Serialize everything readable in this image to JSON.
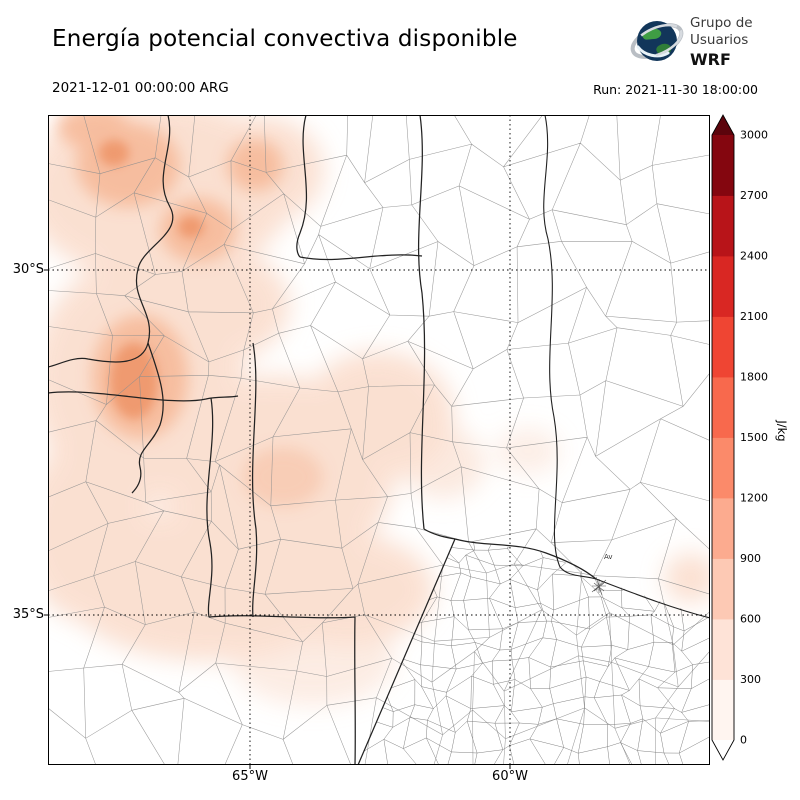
{
  "header": {
    "title": "Energía potencial convectiva disponible",
    "logo": {
      "line1": "Grupo de",
      "line2": "Usuarios",
      "line3": "WRF"
    }
  },
  "subheader": {
    "valid_time": "2021-12-01 00:00:00 ARG",
    "run_label": "Run: 2021-11-30 18:00:00"
  },
  "map": {
    "y_ticks": [
      "30°S",
      "35°S"
    ],
    "x_ticks": [
      "65°W",
      "60°W"
    ],
    "city_label": "Av"
  },
  "colorbar": {
    "unit": "J/kg",
    "ticks": [
      "0",
      "300",
      "600",
      "900",
      "1200",
      "1500",
      "1800",
      "2100",
      "2400",
      "2700",
      "3000"
    ],
    "colors": [
      "#fff5f0",
      "#fee3d7",
      "#fdc9b4",
      "#fcab8f",
      "#fb8a6a",
      "#f8694d",
      "#ef4533",
      "#d92723",
      "#b81419",
      "#84060f"
    ],
    "under_color": "#ffffff",
    "over_color": "#5c040c"
  },
  "chart_data": {
    "type": "heatmap",
    "title": "Energía potencial convectiva disponible",
    "unit": "J/kg",
    "scale_ticks": [
      0,
      300,
      600,
      900,
      1200,
      1500,
      1800,
      2100,
      2400,
      2700,
      3000
    ],
    "lat_gridlines_S": [
      30,
      35
    ],
    "lon_gridlines_W": [
      65,
      60
    ],
    "description": "CAPE field over central Argentina: light-to-moderate values (up to ~900 J/kg) shading the northwest and center-west provinces, near 0 (white) over the eastern plains and Buenos Aires"
  }
}
